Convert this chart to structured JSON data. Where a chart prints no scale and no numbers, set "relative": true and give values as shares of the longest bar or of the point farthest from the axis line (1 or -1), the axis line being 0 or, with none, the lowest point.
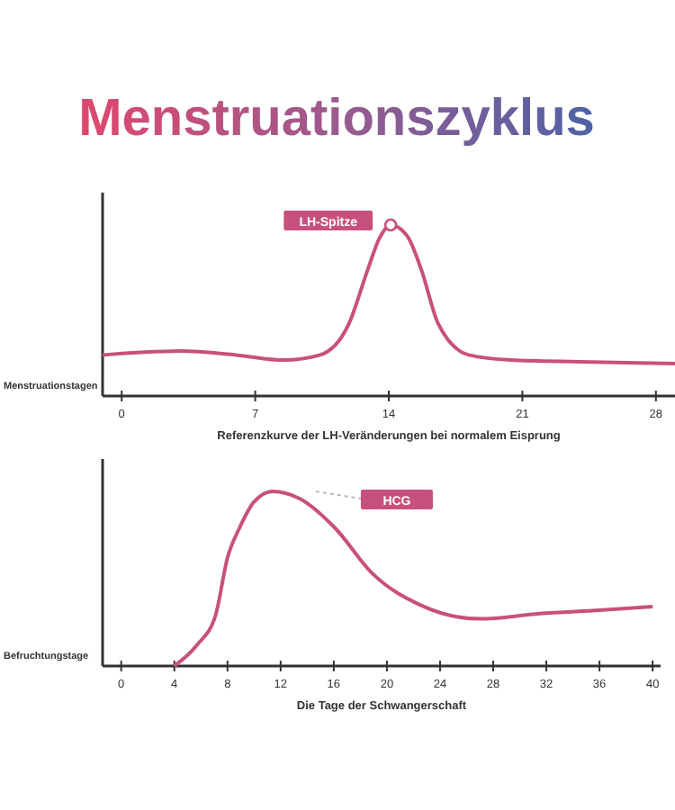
{
  "chart_data": [
    {
      "type": "line",
      "title": "Menstruationszyklus",
      "xlabel": "Referenzkurve der LH-Veränderungen bei normalem Eisprung",
      "relative": true,
      "xlim": [
        -1,
        29
      ],
      "xticks": [
        0,
        7,
        14,
        21,
        28
      ],
      "annotations": [
        "Menstruationstagen",
        {
          "text": "LH-Spitze",
          "x": 14.1,
          "y": 1
        }
      ],
      "series": [
        {
          "color": "#c8507c",
          "x": [
            -1,
            1,
            3.1,
            6,
            8.5,
            10.4,
            11.9,
            12.9,
            13.5,
            14.1,
            15,
            15.7,
            16.6,
            18.2,
            20.4,
            24,
            29
          ],
          "values": [
            0.24,
            0.255,
            0.263,
            0.24,
            0.21,
            0.24,
            0.42,
            0.74,
            0.92,
            1,
            0.93,
            0.74,
            0.42,
            0.24,
            0.21,
            0.2,
            0.19
          ]
        }
      ]
    },
    {
      "type": "line",
      "xlabel": "Die Tage der Schwangerschaft",
      "relative": true,
      "xlim": [
        -1.4,
        40.6
      ],
      "xticks": [
        0,
        4,
        8,
        12,
        16,
        20,
        24,
        28,
        32,
        36,
        40
      ],
      "annotations": [
        "Befruchtungstage",
        "HCG"
      ],
      "series": [
        {
          "color": "#c8507c",
          "x": [
            4,
            5.7,
            7.1,
            8,
            8.9,
            10,
            11.4,
            13.4,
            16.1,
            18.9,
            22.5,
            27,
            31.5,
            36,
            40
          ],
          "values": [
            0,
            0.12,
            0.29,
            0.62,
            0.79,
            0.94,
            1,
            0.96,
            0.79,
            0.53,
            0.35,
            0.27,
            0.3,
            0.32,
            0.34
          ]
        }
      ]
    }
  ]
}
